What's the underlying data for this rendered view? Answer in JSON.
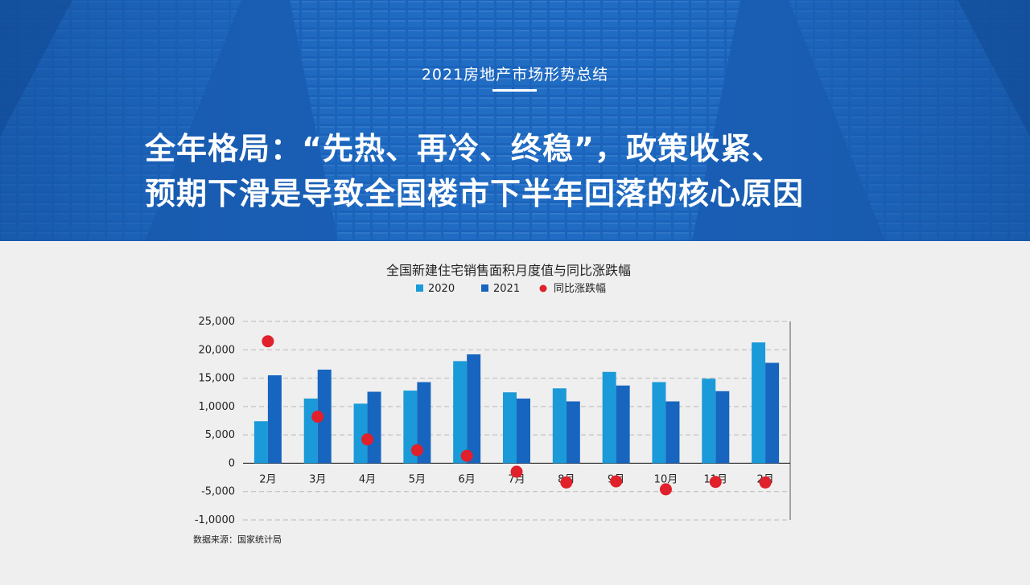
{
  "header": {
    "eyebrow": "2021房地产市场形势总结",
    "title_line1": "全年格局：“先热、再冷、终稳”，政策收紧、",
    "title_line2": "预期下滑是导致全国楼市下半年回落的核心原因"
  },
  "colors": {
    "hero_blue": "#1e6bc6",
    "series_2020": "#1a9ad8",
    "series_2021": "#1765bf",
    "dots": "#e0202a"
  },
  "chart_data": {
    "type": "bar",
    "title": "全国新建住宅销售面积月度值与同比涨跌幅",
    "categories": [
      "2月",
      "3月",
      "4月",
      "5月",
      "6月",
      "7月",
      "8月",
      "9月",
      "10月",
      "11月",
      "2月"
    ],
    "series": [
      {
        "name": "2020",
        "values": [
          7400,
          11400,
          10500,
          12800,
          18000,
          12500,
          13200,
          16100,
          14300,
          14900,
          21300
        ]
      },
      {
        "name": "2021",
        "values": [
          15500,
          16500,
          12600,
          14300,
          19200,
          11400,
          10900,
          13700,
          10900,
          12700,
          17700
        ]
      }
    ],
    "dot_series": {
      "name": "同比涨跌幅",
      "values": [
        21500,
        8200,
        4200,
        2300,
        1300,
        -1500,
        -3400,
        -3200,
        -4600,
        -3300,
        -3400
      ]
    },
    "ylim": [
      -10000,
      25000
    ],
    "yticks": [
      "25,000",
      "20,000",
      "15,000",
      "1,0000",
      "5,000",
      "0",
      "-5,000",
      "-1,0000"
    ],
    "ytick_values": [
      25000,
      20000,
      15000,
      10000,
      5000,
      0,
      -5000,
      -10000
    ],
    "grid": true,
    "legend_position": "top-center",
    "source": "数据来源：国家统计局"
  }
}
